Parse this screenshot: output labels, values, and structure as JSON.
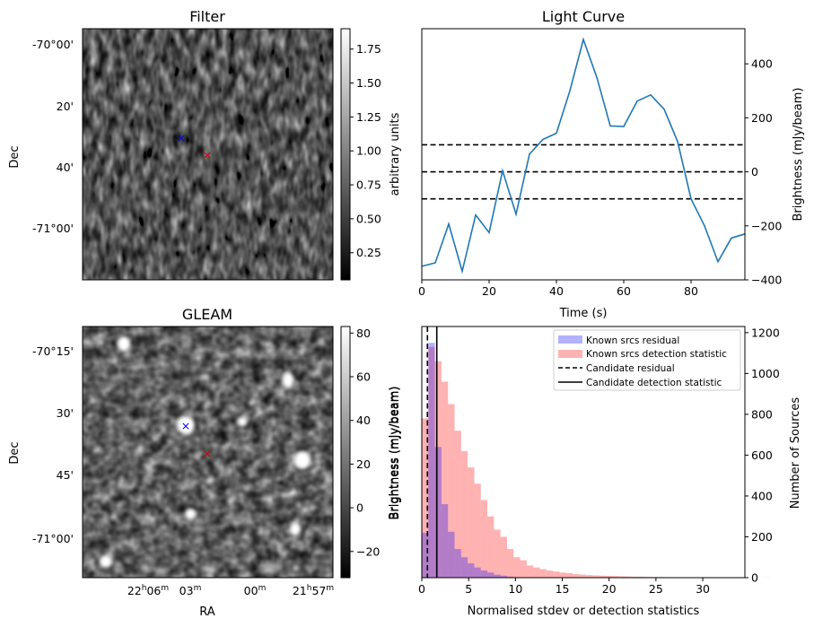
{
  "panels": {
    "filter": {
      "title": "Filter",
      "ylabel": "Dec",
      "dec_ticks": [
        "-70°00'",
        "20'",
        "40'",
        "-71°00'"
      ],
      "colorbar": {
        "label": "arbitrary units",
        "range": [
          0.05,
          1.9
        ],
        "ticks": [
          "0.25",
          "0.50",
          "0.75",
          "1.00",
          "1.25",
          "1.50",
          "1.75"
        ]
      },
      "markers": {
        "blue": "×",
        "red": "×"
      }
    },
    "gleam": {
      "title": "GLEAM",
      "ylabel": "Dec",
      "xlabel": "RA",
      "dec_ticks": [
        "-70°15'",
        "30'",
        "45'",
        "-71°00'"
      ],
      "ra_ticks": [
        {
          "main": "22",
          "h": "h",
          "min": "06",
          "m": "m"
        },
        {
          "main": "",
          "h": "",
          "min": "03",
          "m": "m"
        },
        {
          "main": "",
          "h": "",
          "min": "00",
          "m": "m"
        },
        {
          "main": "21",
          "h": "h",
          "min": "57",
          "m": "m"
        }
      ],
      "colorbar": {
        "label": "Brightness (mJy/beam)",
        "range": [
          -32,
          83
        ],
        "ticks": [
          "−20",
          "0",
          "20",
          "40",
          "60",
          "80"
        ]
      },
      "markers": {
        "blue": "×",
        "red": "×"
      }
    }
  },
  "colors": {
    "line": "#1f77b4",
    "known_residual": "#0000ff",
    "known_detection": "#ff0000",
    "marker_blue": "#0000ff",
    "marker_red": "#dd0000"
  },
  "chart_data": [
    {
      "type": "line",
      "title": "Light Curve",
      "xlabel": "Time (s)",
      "ylabel": "Brightness (mJy/beam)",
      "xlim": [
        0,
        96
      ],
      "ylim": [
        -400,
        530
      ],
      "xticks": [
        "0",
        "20",
        "40",
        "60",
        "80"
      ],
      "yticks": [
        "−400",
        "−200",
        "0",
        "200",
        "400"
      ],
      "x": [
        0,
        4,
        8,
        12,
        16,
        20,
        24,
        28,
        32,
        36,
        40,
        44,
        48,
        52,
        56,
        60,
        64,
        68,
        72,
        76,
        80,
        84,
        88,
        92,
        96
      ],
      "y": [
        -350,
        -337,
        -193,
        -368,
        -160,
        -225,
        4,
        -157,
        66,
        120,
        143,
        300,
        490,
        350,
        170,
        168,
        262,
        285,
        232,
        112,
        -100,
        -200,
        -333,
        -245,
        -230
      ],
      "hlines": [
        100,
        0,
        -100
      ]
    },
    {
      "type": "histogram",
      "xlabel": "Normalised stdev or detection statistics",
      "ylabel_left": "Brightness (mJy/beam)",
      "ylabel_right": "Number of Sources",
      "xlim": [
        0,
        34.5
      ],
      "ylim": [
        0,
        1230
      ],
      "xticks": [
        "0",
        "5",
        "10",
        "15",
        "20",
        "25",
        "30"
      ],
      "yticks": [
        "0",
        "200",
        "400",
        "600",
        "800",
        "1000",
        "1200"
      ],
      "bin_width": 0.7,
      "series": [
        {
          "name": "Known srcs residual",
          "values": [
            220,
            1150,
            640,
            360,
            225,
            140,
            100,
            70,
            50,
            35,
            25,
            15,
            10,
            5,
            3,
            2
          ]
        },
        {
          "name": "Known srcs detection statistic",
          "values": [
            780,
            1130,
            1060,
            960,
            850,
            720,
            620,
            540,
            460,
            380,
            300,
            235,
            200,
            140,
            100,
            85,
            60,
            50,
            42,
            35,
            30,
            25,
            22,
            18,
            15,
            13,
            11,
            10,
            9,
            8,
            7,
            6,
            5,
            5,
            4,
            3,
            3,
            2,
            2,
            2,
            1,
            1,
            1,
            1,
            1,
            1,
            1,
            0,
            0,
            1,
            0,
            0,
            1
          ]
        }
      ],
      "vlines": [
        {
          "name": "Candidate residual",
          "x": 0.6,
          "style": "dashed"
        },
        {
          "name": "Candidate detection statistic",
          "x": 1.6,
          "style": "solid"
        }
      ]
    }
  ]
}
